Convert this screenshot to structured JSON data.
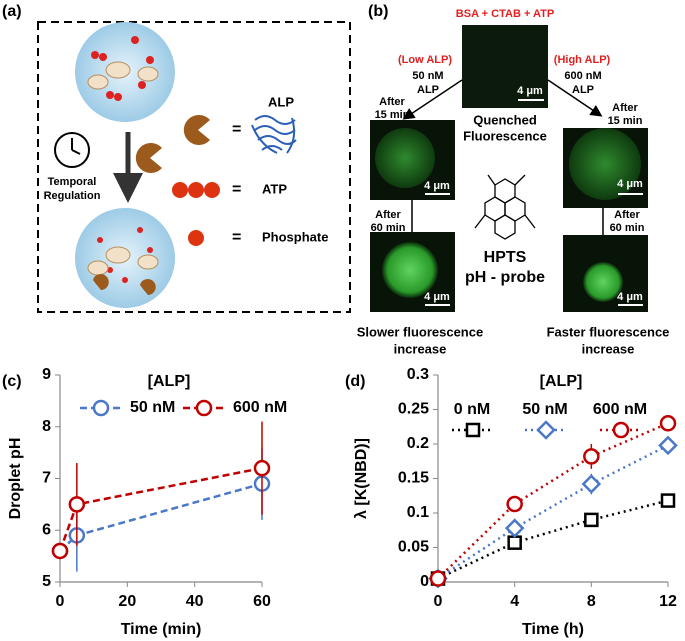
{
  "panel_a": {
    "label": "(a)",
    "alp": "ALP",
    "equals": "=",
    "temporal": "Temporal",
    "regulation": "Regulation",
    "atp": "ATP",
    "phosphate": "Phosphate"
  },
  "panel_b": {
    "label": "(b)",
    "top": "BSA + CTAB + ATP",
    "low": "(Low ALP)",
    "low_conc": "50 nM",
    "alp": "ALP",
    "high": "(High ALP)",
    "high_conc": "600 nM",
    "after": "After",
    "min15": "15 min",
    "min60": "60 min",
    "quenched": "Quenched",
    "fluorescence": "Fluorescence",
    "scale": "4 μm",
    "hpts": "HPTS",
    "probe": "pH - probe",
    "slower": "Slower fluorescence",
    "faster": "Faster fluorescence",
    "increase": "increase"
  },
  "chart_data": [
    {
      "type": "line",
      "label": "(c)",
      "xlabel": "Time (min)",
      "ylabel": "Droplet pH",
      "legend_title": "[ALP]",
      "x": [
        0,
        5,
        60
      ],
      "xlim": [
        0,
        60
      ],
      "xticks": [
        0,
        20,
        40,
        60
      ],
      "ylim": [
        5,
        9
      ],
      "yticks": [
        5,
        6,
        7,
        8,
        9
      ],
      "linestyle": "dashed",
      "series": [
        {
          "name": "50 nM",
          "color": "#4a78c8",
          "marker": "circle",
          "values": [
            5.6,
            5.9,
            6.9
          ],
          "errors": [
            0.1,
            0.7,
            0.7
          ]
        },
        {
          "name": "600 nM",
          "color": "#c00000",
          "marker": "circle",
          "values": [
            5.6,
            6.5,
            7.2
          ],
          "errors": [
            0.1,
            0.8,
            0.9
          ]
        }
      ]
    },
    {
      "type": "line",
      "label": "(d)",
      "xlabel": "Time (h)",
      "ylabel": "λ [K(NBD)]",
      "legend_title": "[ALP]",
      "x": [
        0,
        4,
        8,
        12
      ],
      "xlim": [
        0,
        12
      ],
      "xticks": [
        0,
        4,
        8,
        12
      ],
      "ylim": [
        0,
        0.3
      ],
      "yticks": [
        0,
        0.05,
        0.1,
        0.15,
        0.2,
        0.25,
        0.3
      ],
      "linestyle": "dotted",
      "series": [
        {
          "name": "0 nM",
          "color": "#000000",
          "marker": "square",
          "values": [
            0.005,
            0.057,
            0.09,
            0.118
          ],
          "errors": [
            0.003,
            0.006,
            0.008,
            0.006
          ]
        },
        {
          "name": "50 nM",
          "color": "#4a78c8",
          "marker": "diamond",
          "values": [
            0.005,
            0.078,
            0.142,
            0.198
          ],
          "errors": [
            0.003,
            0.008,
            0.015,
            0.006
          ]
        },
        {
          "name": "600 nM",
          "color": "#c00000",
          "marker": "circle",
          "values": [
            0.005,
            0.113,
            0.182,
            0.23
          ],
          "errors": [
            0.003,
            0.006,
            0.018,
            0.006
          ]
        }
      ]
    }
  ]
}
